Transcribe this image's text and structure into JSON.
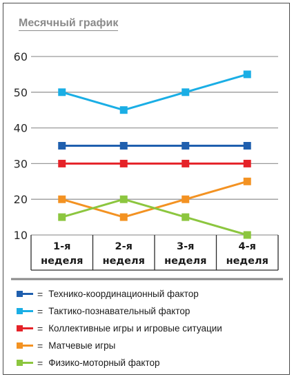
{
  "chart_data": {
    "type": "line",
    "title": "Месячный график",
    "categories": [
      "1-я неделя",
      "2-я неделя",
      "3-я неделя",
      "4-я неделя"
    ],
    "category_lines": [
      [
        "1-я",
        "неделя"
      ],
      [
        "2-я",
        "неделя"
      ],
      [
        "3-я",
        "неделя"
      ],
      [
        "4-я",
        "неделя"
      ]
    ],
    "ylim": [
      10,
      60
    ],
    "yticks": [
      10,
      20,
      30,
      40,
      50,
      60
    ],
    "grid": true,
    "legend_position": "bottom",
    "legend_marker": "=",
    "series": [
      {
        "name": "Технико-координационный фактор",
        "color": "#1f5fae",
        "values": [
          35,
          35,
          35,
          35
        ]
      },
      {
        "name": "Тактико-познавательный фактор",
        "color": "#1aaee5",
        "values": [
          50,
          45,
          50,
          55
        ]
      },
      {
        "name": "Коллективные игры и игровые ситуации",
        "color": "#e52228",
        "values": [
          30,
          30,
          30,
          30
        ]
      },
      {
        "name": "Матчевые игры",
        "color": "#f39222",
        "values": [
          20,
          15,
          20,
          25
        ]
      },
      {
        "name": "Физико-моторный фактор",
        "color": "#8cc63f",
        "values": [
          15,
          20,
          15,
          10
        ]
      }
    ]
  }
}
